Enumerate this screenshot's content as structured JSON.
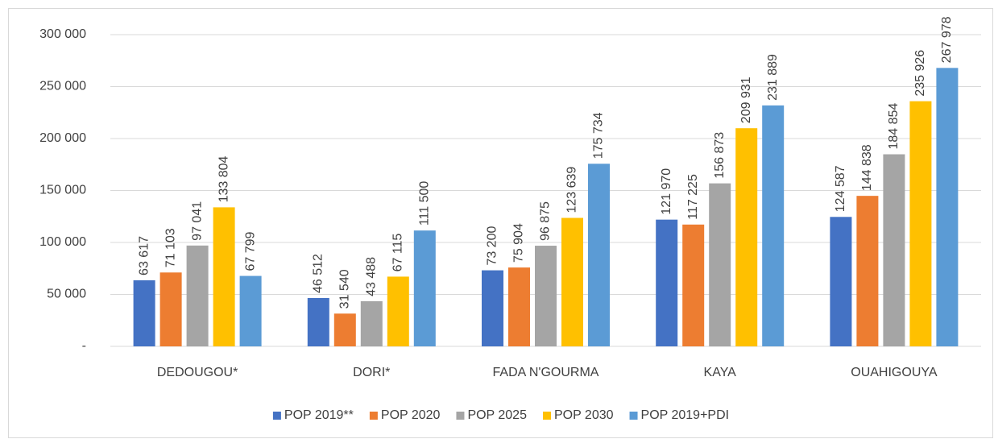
{
  "chart_data": {
    "type": "bar",
    "categories": [
      "DEDOUGOU*",
      "DORI*",
      "FADA N'GOURMA",
      "KAYA",
      "OUAHIGOUYA"
    ],
    "series": [
      {
        "name": "POP 2019**",
        "color": "#4472c4",
        "values": [
          63617,
          46512,
          73200,
          121970,
          124587
        ],
        "value_labels": [
          "63 617",
          "46 512",
          "73 200",
          "121 970",
          "124 587"
        ]
      },
      {
        "name": "POP 2020",
        "color": "#ed7d31",
        "values": [
          71103,
          31540,
          75904,
          117225,
          144838
        ],
        "value_labels": [
          "71 103",
          "31 540",
          "75 904",
          "117 225",
          "144 838"
        ]
      },
      {
        "name": "POP 2025",
        "color": "#a5a5a5",
        "values": [
          97041,
          43488,
          96875,
          156873,
          184854
        ],
        "value_labels": [
          "97 041",
          "43 488",
          "96 875",
          "156 873",
          "184 854"
        ]
      },
      {
        "name": "POP 2030",
        "color": "#ffc000",
        "values": [
          133804,
          67115,
          123639,
          209931,
          235926
        ],
        "value_labels": [
          "133 804",
          "67 115",
          "123 639",
          "209 931",
          "235 926"
        ]
      },
      {
        "name": "POP 2019+PDI",
        "color": "#5b9bd5",
        "values": [
          67799,
          111500,
          175734,
          231889,
          267978
        ],
        "value_labels": [
          "67 799",
          "111 500",
          "175 734",
          "231 889",
          "267 978"
        ]
      }
    ],
    "ylim": [
      0,
      300000
    ],
    "yticks": [
      {
        "value": 0,
        "label": "-"
      },
      {
        "value": 50000,
        "label": "50 000"
      },
      {
        "value": 100000,
        "label": "100 000"
      },
      {
        "value": 150000,
        "label": "150 000"
      },
      {
        "value": 200000,
        "label": "200 000"
      },
      {
        "value": 250000,
        "label": "250 000"
      },
      {
        "value": 300000,
        "label": "300 000"
      }
    ],
    "grid": true,
    "legend": "bottom"
  }
}
